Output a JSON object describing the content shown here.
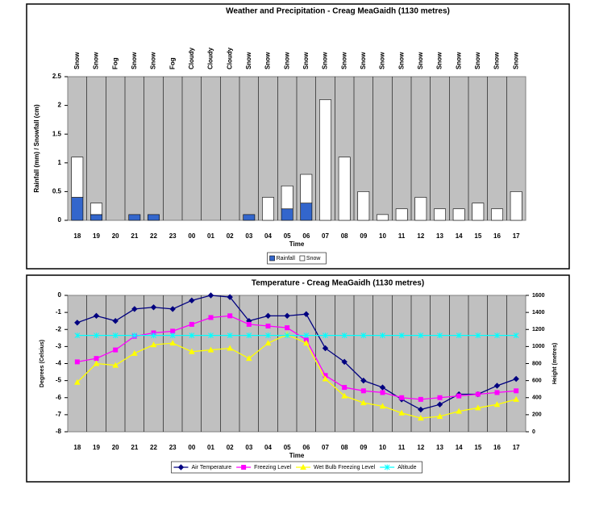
{
  "chart_data": [
    {
      "type": "bar",
      "stacked": true,
      "title": "Weather and Precipitation - Creag MeaGaidh (1130 metres)",
      "ylabel": "Rainfall (mm) / Snowfall (cm)",
      "xlabel": "Time",
      "categories": [
        "18",
        "19",
        "20",
        "21",
        "22",
        "23",
        "00",
        "01",
        "02",
        "03",
        "04",
        "05",
        "06",
        "07",
        "08",
        "09",
        "10",
        "11",
        "12",
        "13",
        "14",
        "15",
        "16",
        "17"
      ],
      "weather": [
        "Snow",
        "Snow",
        "Fog",
        "Snow",
        "Snow",
        "Fog",
        "Cloudy",
        "Cloudy",
        "Cloudy",
        "Snow",
        "Snow",
        "Snow",
        "Snow",
        "Snow",
        "Snow",
        "Snow",
        "Snow",
        "Snow",
        "Snow",
        "Snow",
        "Snow",
        "Snow",
        "Snow",
        "Snow"
      ],
      "series": [
        {
          "name": "Rainfall",
          "color": "#3366cc",
          "values": [
            0.4,
            0.1,
            0,
            0.1,
            0.1,
            0,
            0,
            0,
            0,
            0.1,
            0,
            0.2,
            0.3,
            0,
            0,
            0,
            0,
            0,
            0,
            0,
            0,
            0,
            0,
            0
          ]
        },
        {
          "name": "Snow",
          "color": "#ffffff",
          "values": [
            0.7,
            0.2,
            0,
            0,
            0,
            0,
            0,
            0,
            0,
            0,
            0.4,
            0.4,
            0.5,
            2.1,
            1.1,
            0.5,
            0.1,
            0.2,
            0.4,
            0.2,
            0.2,
            0.3,
            0.2,
            0.5
          ]
        }
      ],
      "ylim": [
        0,
        2.5
      ],
      "yticks": [
        0,
        0.5,
        1,
        1.5,
        2,
        2.5
      ],
      "grid": false,
      "legend": "bottom"
    },
    {
      "type": "line",
      "title": "Temperature - Creag MeaGaidh (1130 metres)",
      "ylabel": "Degrees (Celsius)",
      "y2label": "Height (metres)",
      "xlabel": "Time",
      "categories": [
        "18",
        "19",
        "20",
        "21",
        "22",
        "23",
        "00",
        "01",
        "02",
        "03",
        "04",
        "05",
        "06",
        "07",
        "08",
        "09",
        "10",
        "11",
        "12",
        "13",
        "14",
        "15",
        "16",
        "17"
      ],
      "series": [
        {
          "name": "Air Temperature",
          "color": "#000080",
          "marker": "diamond",
          "values": [
            -1.6,
            -1.2,
            -1.5,
            -0.8,
            -0.7,
            -0.8,
            -0.3,
            0,
            -0.1,
            -1.5,
            -1.2,
            -1.2,
            -1.1,
            -3.1,
            -3.9,
            -5.0,
            -5.4,
            -6.1,
            -6.7,
            -6.4,
            -5.8,
            -5.8,
            -5.3,
            -4.9
          ]
        },
        {
          "name": "Freezing Level",
          "color": "#ff00ff",
          "marker": "square",
          "axis": "y2",
          "values": [
            820,
            860,
            960,
            1120,
            1160,
            1180,
            1260,
            1340,
            1360,
            1260,
            1240,
            1220,
            1080,
            660,
            520,
            480,
            460,
            400,
            380,
            400,
            420,
            440,
            460,
            480
          ]
        },
        {
          "name": "Wet Bulb Freezing Level",
          "color": "#ffff00",
          "marker": "triangle",
          "axis": "y2",
          "values": [
            580,
            800,
            780,
            920,
            1020,
            1040,
            940,
            960,
            980,
            860,
            1040,
            1140,
            1040,
            620,
            420,
            340,
            300,
            220,
            160,
            180,
            240,
            280,
            320,
            380
          ]
        },
        {
          "name": "Altitude",
          "color": "#00ffff",
          "marker": "star",
          "axis": "y2",
          "values": [
            1130,
            1130,
            1130,
            1130,
            1130,
            1130,
            1130,
            1130,
            1130,
            1130,
            1130,
            1130,
            1130,
            1130,
            1130,
            1130,
            1130,
            1130,
            1130,
            1130,
            1130,
            1130,
            1130,
            1130
          ]
        }
      ],
      "ylim": [
        -8,
        0
      ],
      "yticks": [
        -8,
        -7,
        -6,
        -5,
        -4,
        -3,
        -2,
        -1,
        0
      ],
      "y2lim": [
        0,
        1600
      ],
      "y2ticks": [
        0,
        200,
        400,
        600,
        800,
        1000,
        1200,
        1400,
        1600
      ],
      "grid": false,
      "legend": "bottom"
    }
  ]
}
